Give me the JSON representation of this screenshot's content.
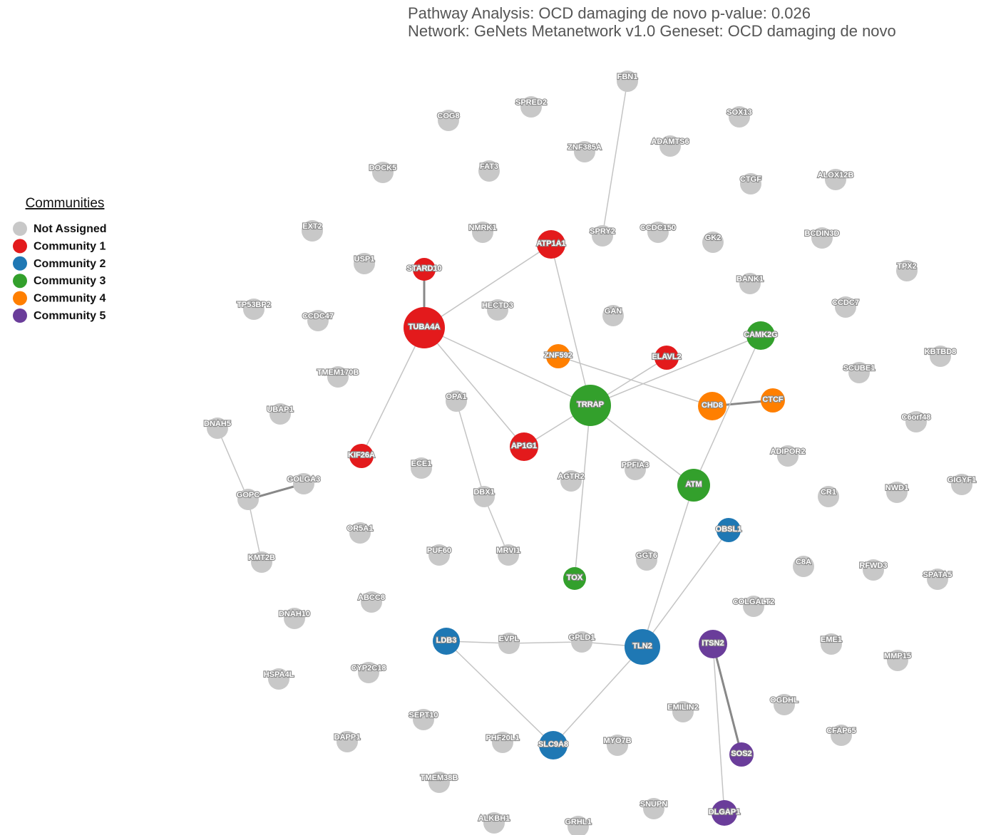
{
  "header": {
    "title": "Pathway Analysis: OCD damaging de novo p-value: 0.026",
    "subtitle": "Network: GeNets Metanetwork v1.0 Geneset: OCD damaging de novo"
  },
  "legend": {
    "title": "Communities"
  },
  "communities": [
    {
      "name": "Not Assigned",
      "color": "#c8c8c8",
      "nodes": [
        "FBN1",
        "SPRED2",
        "COG8",
        "SOX13",
        "ADAMTS6",
        "ZNF385A",
        "DOCK5",
        "FAT3",
        "CTGF",
        "ALOX12B",
        "EXT2",
        "NMRK1",
        "SPRY2",
        "CCDC150",
        "GK2",
        "BCDIN3D",
        "USP1",
        "TPX2",
        "BANK1",
        "TP53BP2",
        "CCDC47",
        "HECTD3",
        "GAN",
        "CCDC7",
        "TMEM170B",
        "SCUBE1",
        "KBTBD8",
        "OPA1",
        "C6orf48",
        "UBAP1",
        "DNAH5",
        "ADIPOR2",
        "ECE1",
        "PPFIA3",
        "AGTR2",
        "GOLGA3",
        "GOPC",
        "DBX1",
        "CR1",
        "NWD1",
        "GIGYF1",
        "OR5A1",
        "PUF60",
        "MRVI1",
        "GGT6",
        "KMT2B",
        "C8A",
        "RFWD3",
        "SPATA5",
        "ABCC8",
        "COLGALT2",
        "DNAH10",
        "EVPL",
        "GPLD1",
        "EME1",
        "CYP2C18",
        "HSPA4L",
        "MMP15",
        "OGDHL",
        "EMILIN2",
        "SEPT10",
        "CFAP65",
        "DAPP1",
        "PHF20L1",
        "MYO7B",
        "TMEM38B",
        "SNUPN",
        "ALKBH1",
        "GRHL1"
      ]
    },
    {
      "name": "Community 1",
      "color": "#e31a1c",
      "nodes": [
        "ATP1A1",
        "STARD10",
        "TUBA4A",
        "ELAVL2",
        "KIF26A",
        "AP1G1"
      ]
    },
    {
      "name": "Community 2",
      "color": "#1f78b4",
      "nodes": [
        "OBSL1",
        "LDB3",
        "TLN2",
        "SLC9A8"
      ]
    },
    {
      "name": "Community 3",
      "color": "#33a02c",
      "nodes": [
        "CAMK2G",
        "TRRAP",
        "ATM",
        "TOX"
      ]
    },
    {
      "name": "Community 4",
      "color": "#ff7f00",
      "nodes": [
        "ZNF592",
        "CHD8",
        "CTCF"
      ]
    },
    {
      "name": "Community 5",
      "color": "#6a3d9a",
      "nodes": [
        "ITSN2",
        "SOS2",
        "DLGAP1"
      ]
    }
  ]
}
